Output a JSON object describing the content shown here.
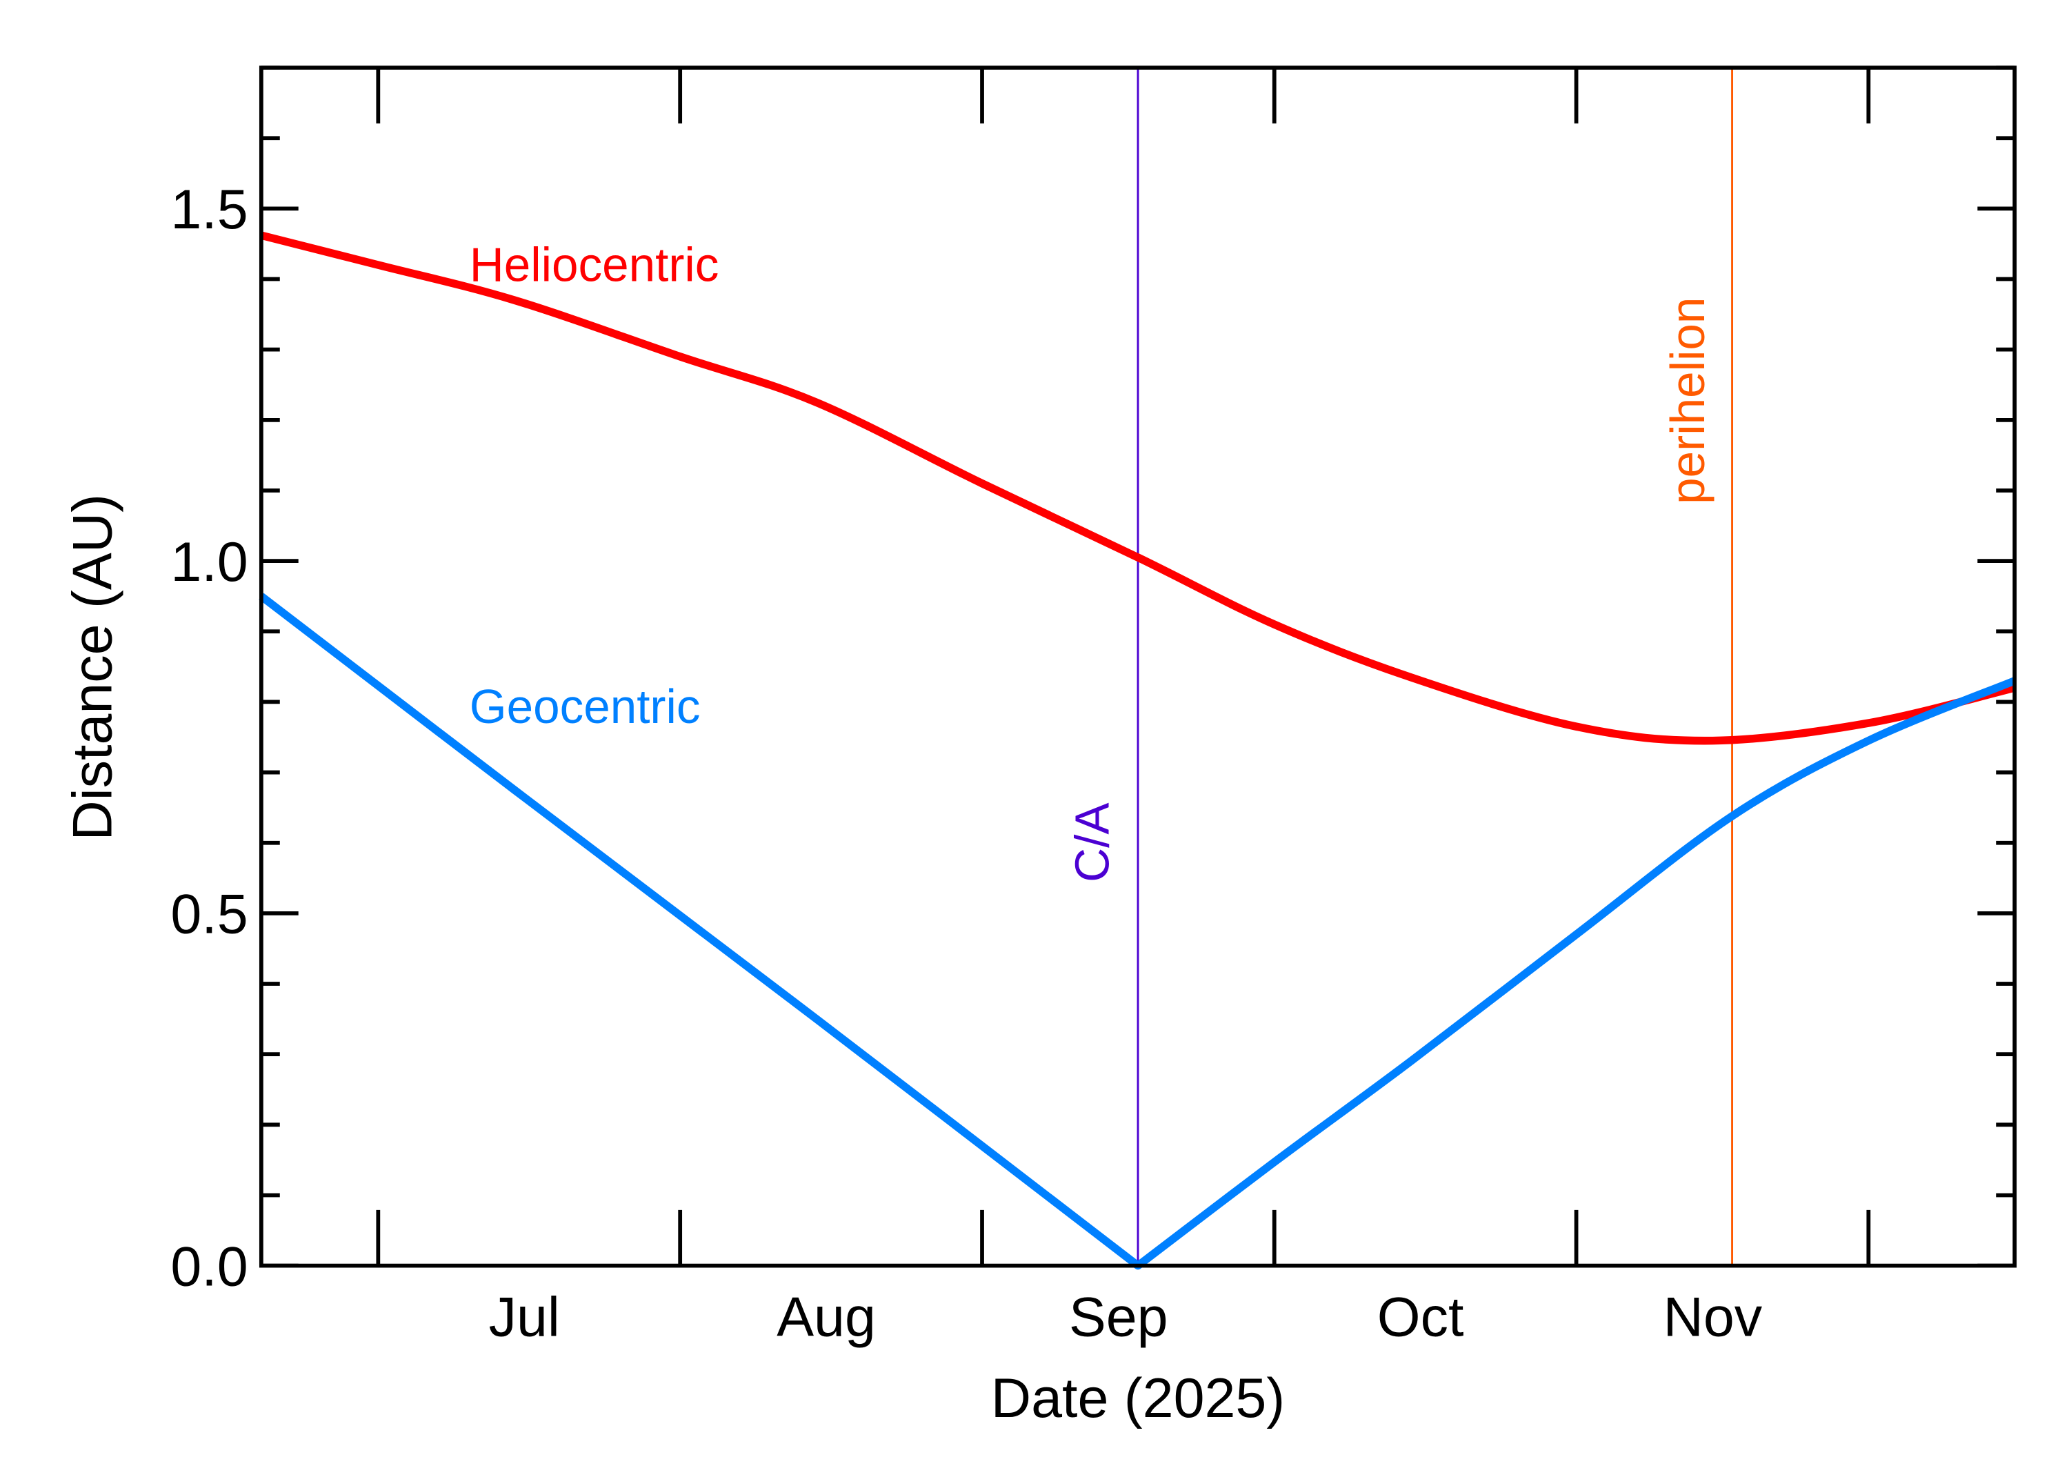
{
  "chart_data": {
    "type": "line",
    "xlabel": "Date (2025)",
    "ylabel": "Distance (AU)",
    "xlim": [
      "2025-06-19",
      "2025-12-16"
    ],
    "ylim": [
      0,
      1.7
    ],
    "grid": false,
    "x_ticks": [
      {
        "date": "2025-07-01"
      },
      {
        "date": "2025-08-01"
      },
      {
        "date": "2025-09-01"
      },
      {
        "date": "2025-10-01"
      },
      {
        "date": "2025-11-01"
      },
      {
        "date": "2025-12-01"
      }
    ],
    "x_tick_labels": [
      {
        "label": "Jul",
        "date": "2025-07-16"
      },
      {
        "label": "Aug",
        "date": "2025-08-16"
      },
      {
        "label": "Sep",
        "date": "2025-09-15"
      },
      {
        "label": "Oct",
        "date": "2025-10-16"
      },
      {
        "label": "Nov",
        "date": "2025-11-15"
      }
    ],
    "y_ticks": [
      "0.0",
      "0.5",
      "1.0",
      "1.5"
    ],
    "y_minor_step": 0.1,
    "series": [
      {
        "name": "Heliocentric",
        "color": "#ff0000",
        "x": [
          "2025-06-19",
          "2025-07-01",
          "2025-07-15",
          "2025-08-01",
          "2025-08-15",
          "2025-09-01",
          "2025-09-17",
          "2025-10-01",
          "2025-10-15",
          "2025-11-01",
          "2025-11-15",
          "2025-12-01",
          "2025-12-16"
        ],
        "y": [
          1.462,
          1.42,
          1.37,
          1.29,
          1.225,
          1.11,
          1.005,
          0.91,
          0.835,
          0.765,
          0.745,
          0.77,
          0.82
        ]
      },
      {
        "name": "Geocentric",
        "color": "#0080ff",
        "x": [
          "2025-06-19",
          "2025-07-15",
          "2025-08-15",
          "2025-09-17",
          "2025-10-01",
          "2025-10-15",
          "2025-11-01",
          "2025-11-17",
          "2025-12-01",
          "2025-12-16"
        ],
        "y": [
          0.95,
          0.675,
          0.35,
          0.0,
          0.147,
          0.29,
          0.47,
          0.638,
          0.745,
          0.83
        ]
      }
    ],
    "annotations": [
      {
        "label": "C/A",
        "date": "2025-09-17",
        "color": "#4b00d2"
      },
      {
        "label": "perihelion",
        "date": "2025-11-17",
        "color": "#ff5a00"
      }
    ]
  }
}
